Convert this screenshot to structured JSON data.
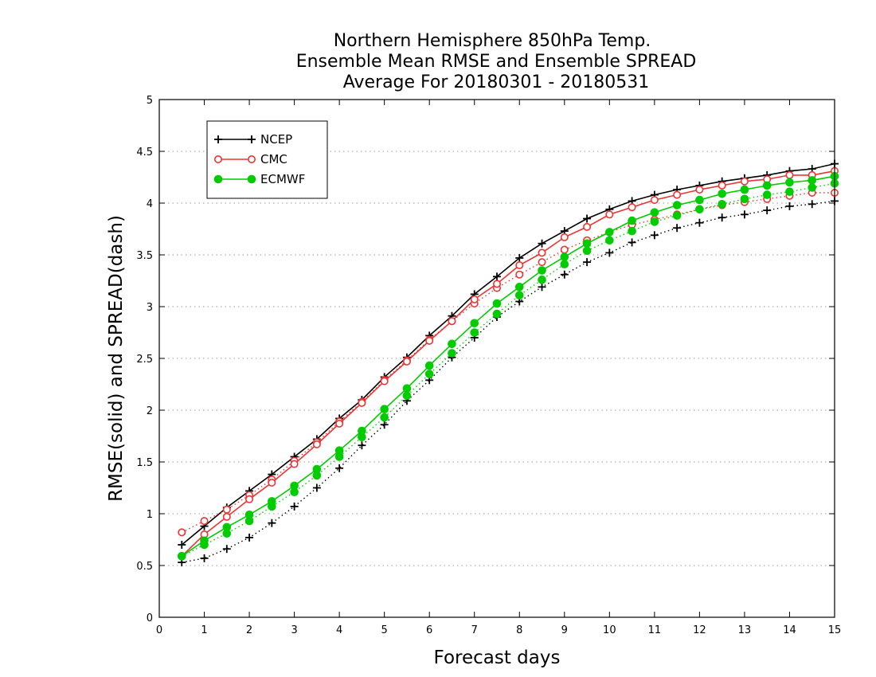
{
  "chart_data": {
    "type": "line",
    "title_lines": [
      "Northern Hemisphere 850hPa Temp.",
      "Ensemble Mean RMSE and Ensemble SPREAD",
      "Average For 20180301 - 20180531"
    ],
    "xlabel": "Forecast days",
    "ylabel": "RMSE(solid) and SPREAD(dash)",
    "xlim": [
      0,
      15
    ],
    "ylim": [
      0,
      5
    ],
    "xticks": [
      "0",
      "1",
      "2",
      "3",
      "4",
      "5",
      "6",
      "7",
      "8",
      "9",
      "10",
      "11",
      "12",
      "13",
      "14",
      "15"
    ],
    "yticks": [
      "0",
      "0.5",
      "1",
      "1.5",
      "2",
      "2.5",
      "3",
      "3.5",
      "4",
      "4.5",
      "5"
    ],
    "grid": "horizontal-dotted",
    "legend_position": "top-left",
    "legend": [
      "NCEP",
      "CMC",
      "ECMWF"
    ],
    "x": [
      0.5,
      1,
      1.5,
      2,
      2.5,
      3,
      3.5,
      4,
      4.5,
      5,
      5.5,
      6,
      6.5,
      7,
      7.5,
      8,
      8.5,
      9,
      9.5,
      10,
      10.5,
      11,
      11.5,
      12,
      12.5,
      13,
      13.5,
      14,
      14.5,
      15
    ],
    "series": [
      {
        "name": "NCEP",
        "color": "#000000",
        "marker": "plus",
        "rmse": [
          0.7,
          0.88,
          1.06,
          1.22,
          1.38,
          1.55,
          1.72,
          1.92,
          2.1,
          2.32,
          2.51,
          2.72,
          2.91,
          3.12,
          3.29,
          3.47,
          3.61,
          3.73,
          3.85,
          3.94,
          4.02,
          4.08,
          4.13,
          4.17,
          4.21,
          4.24,
          4.27,
          4.31,
          4.33,
          4.38
        ],
        "spread": [
          0.53,
          0.57,
          0.66,
          0.77,
          0.91,
          1.07,
          1.25,
          1.44,
          1.66,
          1.86,
          2.09,
          2.29,
          2.51,
          2.7,
          2.9,
          3.05,
          3.19,
          3.31,
          3.43,
          3.52,
          3.62,
          3.69,
          3.76,
          3.81,
          3.86,
          3.89,
          3.93,
          3.97,
          3.99,
          4.02
        ]
      },
      {
        "name": "CMC",
        "color": "#ee3333",
        "marker": "open-circle",
        "rmse": [
          0.59,
          0.8,
          0.97,
          1.14,
          1.3,
          1.48,
          1.67,
          1.87,
          2.07,
          2.28,
          2.47,
          2.67,
          2.86,
          3.07,
          3.22,
          3.4,
          3.52,
          3.67,
          3.77,
          3.89,
          3.96,
          4.03,
          4.08,
          4.13,
          4.17,
          4.21,
          4.23,
          4.27,
          4.27,
          4.31
        ],
        "spread": [
          0.82,
          0.93,
          1.04,
          1.18,
          1.33,
          1.51,
          1.69,
          1.89,
          2.08,
          2.29,
          2.48,
          2.68,
          2.86,
          3.03,
          3.18,
          3.31,
          3.43,
          3.55,
          3.64,
          3.72,
          3.79,
          3.84,
          3.89,
          3.94,
          3.98,
          4.01,
          4.04,
          4.07,
          4.1,
          4.1
        ]
      },
      {
        "name": "ECMWF",
        "color": "#00cc00",
        "marker": "filled-circle",
        "rmse": [
          0.59,
          0.74,
          0.87,
          0.99,
          1.12,
          1.27,
          1.43,
          1.61,
          1.8,
          2.01,
          2.21,
          2.43,
          2.64,
          2.84,
          3.03,
          3.19,
          3.35,
          3.48,
          3.61,
          3.72,
          3.83,
          3.91,
          3.98,
          4.03,
          4.09,
          4.13,
          4.17,
          4.2,
          4.22,
          4.26
        ],
        "spread": [
          0.59,
          0.7,
          0.81,
          0.93,
          1.07,
          1.21,
          1.37,
          1.55,
          1.74,
          1.93,
          2.14,
          2.35,
          2.55,
          2.75,
          2.93,
          3.11,
          3.26,
          3.41,
          3.54,
          3.64,
          3.73,
          3.82,
          3.88,
          3.94,
          3.99,
          4.04,
          4.08,
          4.11,
          4.15,
          4.19
        ]
      }
    ]
  }
}
